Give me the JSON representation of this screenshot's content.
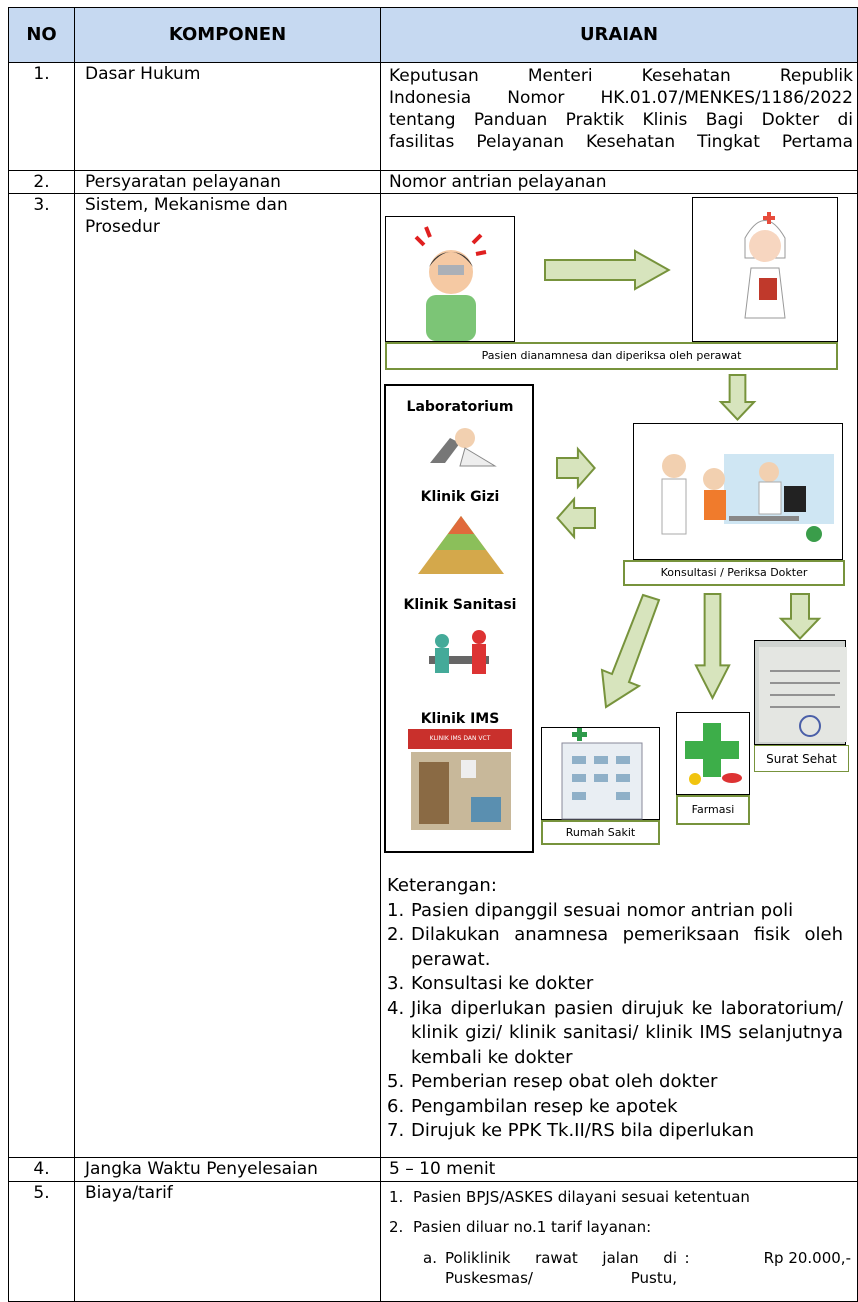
{
  "table": {
    "header": [
      "NO",
      "KOMPONEN",
      "URAIAN"
    ],
    "rows": [
      {
        "no": "1.",
        "komponen": "Dasar Hukum",
        "uraian": [
          "Keputusan Menteri Kesehatan Republik",
          "Indonesia Nomor HK.01.07/MENKES/1186/2022",
          "tentang Panduan Praktik Klinis Bagi Dokter di",
          "fasilitas Pelayanan Kesehatan Tingkat Pertama"
        ]
      },
      {
        "no": "2.",
        "komponen": "Persyaratan pelayanan",
        "uraian": "Nomor antrian pelayanan"
      },
      {
        "no": "3.",
        "komponen": "Sistem, Mekanisme dan Prosedur",
        "diagram": {
          "step1": "Pasien dianamnesa dan diperiksa oleh perawat",
          "clinics": [
            "Laboratorium",
            "Klinik Gizi",
            "Klinik Sanitasi",
            "Klinik IMS"
          ],
          "ims_sign": "KLINIK IMS DAN VCT",
          "doctor": "Konsultasi / Periksa Dokter",
          "hospital": "Rumah Sakit",
          "pharmacy": "Farmasi",
          "certificate": "Surat Sehat"
        },
        "keterangan": {
          "title": "Keterangan:",
          "items": [
            {
              "number": "1.",
              "text": "Pasien dipanggil sesuai nomor antrian poli"
            },
            {
              "number": "2.",
              "text": "Dilakukan anamnesa pemeriksaan fisik oleh perawat."
            },
            {
              "number": "3.",
              "text": "Konsultasi ke dokter"
            },
            {
              "number": "4.",
              "text": "Jika diperlukan pasien dirujuk ke laboratorium/ klinik gizi/ klinik sanitasi/ klinik IMS selanjutnya kembali ke dokter"
            },
            {
              "number": "5.",
              "text": "Pemberian resep obat oleh dokter"
            },
            {
              "number": "6.",
              "text": "Pengambilan resep ke apotek"
            },
            {
              "number": "7.",
              "text": "Dirujuk ke PPK Tk.II/RS bila diperlukan"
            }
          ]
        }
      },
      {
        "no": "4.",
        "komponen": "Jangka Waktu Penyelesaian",
        "uraian": "5 – 10 menit"
      },
      {
        "no": "5.",
        "komponen": "Biaya/tarif",
        "items": [
          {
            "number": "1.",
            "text": "Pasien BPJS/ASKES dilayani sesuai ketentuan"
          },
          {
            "number": "2.",
            "text": "Pasien diluar no.1 tarif layanan:",
            "sub": [
              {
                "letter": "a.",
                "label": "Poliklinik rawat jalan di Puskesmas/ Pustu,",
                "colon": ":",
                "price": "Rp 20.000,-"
              }
            ]
          }
        ]
      }
    ]
  }
}
